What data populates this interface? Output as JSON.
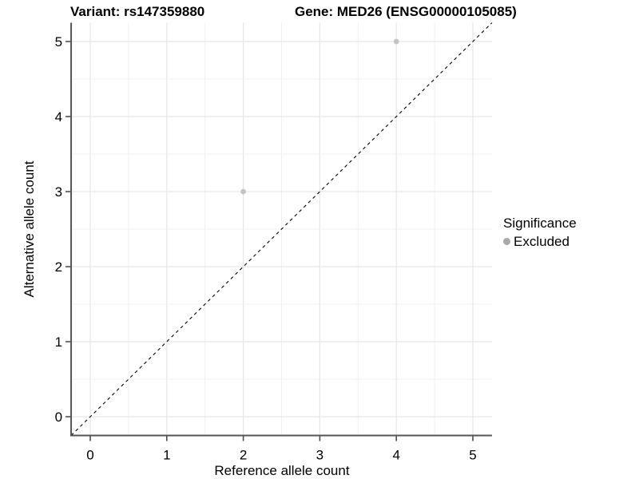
{
  "chart_data": {
    "type": "scatter",
    "title_left": "Variant: rs147359880",
    "title_right": "Gene: MED26 (ENSG00000105085)",
    "xlabel": "Reference allele count",
    "ylabel": "Alternative allele count",
    "xlim": [
      -0.25,
      5.25
    ],
    "ylim": [
      -0.25,
      5.25
    ],
    "xticks": [
      0,
      1,
      2,
      3,
      4,
      5
    ],
    "yticks": [
      0,
      1,
      2,
      3,
      4,
      5
    ],
    "grid": "major and minor, light gray, on white panel",
    "reference_line": {
      "equation": "y = x",
      "style": "dashed",
      "color": "#000000"
    },
    "series": [
      {
        "name": "Excluded",
        "color": "#c3c3c3",
        "points": [
          {
            "x": 2,
            "y": 3
          },
          {
            "x": 4,
            "y": 5
          }
        ]
      }
    ],
    "legend": {
      "title": "Significance",
      "position": "right",
      "key_color": "#a8a8a8"
    },
    "colors": {
      "grid_major": "#e6e6e6",
      "grid_minor": "#efefef",
      "axis_line": "#555555",
      "tick": "#4d4d4d",
      "text": "#000000"
    }
  }
}
